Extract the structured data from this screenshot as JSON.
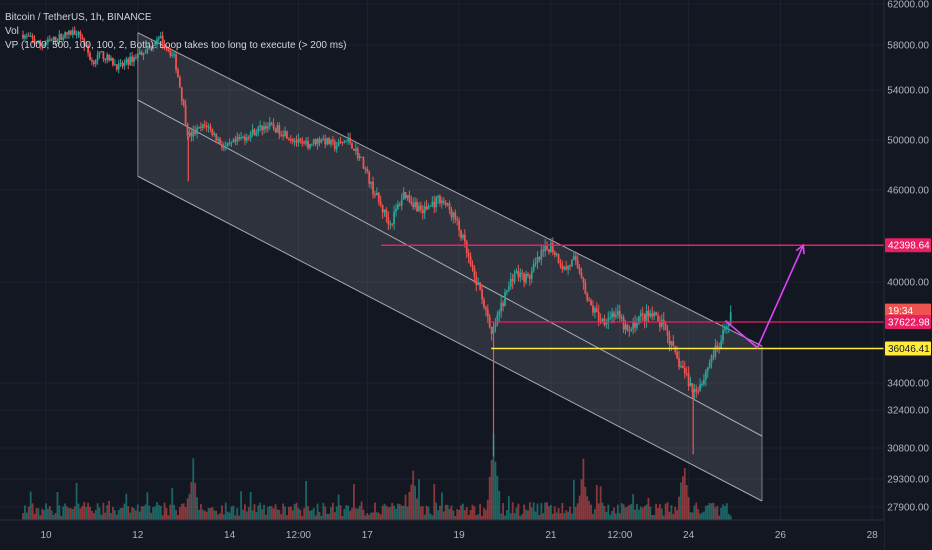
{
  "header": {
    "symbol": "Bitcoin / TetherUS, 1h, BINANCE",
    "volume_label": "Vol",
    "indicator": "VP (1000, 500, 100, 100, 2, Both): Loop takes too long to execute (> 200 ms)"
  },
  "colors": {
    "background": "#131722",
    "grid": "#1e222d",
    "up": "#26a69a",
    "down": "#ef5350",
    "channel_fill": "#787b86",
    "channel_line": "#d1d4dc",
    "resistance": "#e91e63",
    "support": "#ffeb3b",
    "projection": "#e040fb",
    "tag_text_dark": "#131722",
    "tag_text_light": "#ffffff"
  },
  "chart_data": {
    "type": "candlestick",
    "symbol": "BTCUSDT",
    "interval": "1h",
    "exchange": "BINANCE",
    "y_ticks": [
      62000,
      58000,
      54000,
      50000,
      46000,
      40000,
      34000,
      32400,
      30800,
      29300,
      27900
    ],
    "y_tick_labels": [
      "62000.00",
      "58000.00",
      "54000.00",
      "50000.00",
      "46000.00",
      "40000.00",
      "34000.00",
      "32400.00",
      "30800.00",
      "29300.00",
      "27900.00"
    ],
    "x_ticks": [
      {
        "label": "10",
        "day": 10
      },
      {
        "label": "12",
        "day": 12
      },
      {
        "label": "14",
        "day": 14
      },
      {
        "label": "12:00",
        "day": 15.5
      },
      {
        "label": "17",
        "day": 17
      },
      {
        "label": "19",
        "day": 19
      },
      {
        "label": "21",
        "day": 21
      },
      {
        "label": "12:00",
        "day": 22.5
      },
      {
        "label": "24",
        "day": 24
      },
      {
        "label": "26",
        "day": 26
      },
      {
        "label": "28",
        "day": 28
      }
    ],
    "price_path": [
      [
        9.5,
        59000
      ],
      [
        9.9,
        58000
      ],
      [
        10.3,
        58800
      ],
      [
        10.7,
        59400
      ],
      [
        11.0,
        56500
      ],
      [
        11.2,
        57200
      ],
      [
        11.6,
        56000
      ],
      [
        12.1,
        57400
      ],
      [
        12.5,
        58600
      ],
      [
        12.8,
        56800
      ],
      [
        13.0,
        52600
      ],
      [
        13.1,
        50300
      ],
      [
        13.5,
        51200
      ],
      [
        13.9,
        49300
      ],
      [
        14.3,
        50200
      ],
      [
        14.8,
        51200
      ],
      [
        15.2,
        50600
      ],
      [
        15.6,
        49500
      ],
      [
        16.0,
        50100
      ],
      [
        16.3,
        49500
      ],
      [
        16.6,
        50000
      ],
      [
        16.9,
        48200
      ],
      [
        17.1,
        46200
      ],
      [
        17.3,
        44900
      ],
      [
        17.5,
        43800
      ],
      [
        17.8,
        45800
      ],
      [
        18.2,
        44600
      ],
      [
        18.6,
        45500
      ],
      [
        18.9,
        44200
      ],
      [
        19.1,
        42600
      ],
      [
        19.3,
        40500
      ],
      [
        19.5,
        39200
      ],
      [
        19.7,
        36700
      ],
      [
        19.9,
        38400
      ],
      [
        20.2,
        40600
      ],
      [
        20.5,
        40200
      ],
      [
        20.8,
        41800
      ],
      [
        21.0,
        42400
      ],
      [
        21.3,
        40800
      ],
      [
        21.5,
        41400
      ],
      [
        21.7,
        40300
      ],
      [
        21.8,
        38800
      ],
      [
        22.1,
        37700
      ],
      [
        22.4,
        38200
      ],
      [
        22.7,
        36900
      ],
      [
        22.9,
        37900
      ],
      [
        23.2,
        38000
      ],
      [
        23.5,
        37200
      ],
      [
        23.7,
        35600
      ],
      [
        23.9,
        34700
      ],
      [
        24.1,
        33500
      ],
      [
        24.3,
        34100
      ],
      [
        24.5,
        35600
      ],
      [
        24.7,
        36300
      ],
      [
        24.8,
        37300
      ],
      [
        24.95,
        38300
      ]
    ],
    "annotations": {
      "channel_upper": {
        "start": [
          12,
          59200
        ],
        "end": [
          25.6,
          36200
        ]
      },
      "channel_mid": {
        "start": [
          12,
          53200
        ],
        "end": [
          25.6,
          31300
        ]
      },
      "channel_lower": {
        "start": [
          12,
          47100
        ],
        "end": [
          25.6,
          28200
        ]
      },
      "resistance": {
        "price": 42398.64,
        "from_day": 17.3
      },
      "second_level": {
        "price": 37622.98,
        "from_day": 19.7
      },
      "support": {
        "price": 36046.41,
        "from_day": 19.7
      },
      "projection": [
        [
          24.8,
          37700
        ],
        [
          25.5,
          36100
        ],
        [
          26.5,
          42400
        ]
      ]
    },
    "price_tags": [
      {
        "label": "42398.64",
        "price": 42398.64,
        "color": "resistance",
        "text": "tag_text_light"
      },
      {
        "label": "19:34",
        "price": 38300,
        "color": "down",
        "text": "tag_text_light"
      },
      {
        "label": "37622.98",
        "price": 37622.98,
        "color": "resistance",
        "text": "tag_text_light"
      },
      {
        "label": "36046.41",
        "price": 36046.41,
        "color": "support",
        "text": "tag_text_dark"
      }
    ],
    "volume": {
      "baseline_share": 0.18
    }
  }
}
